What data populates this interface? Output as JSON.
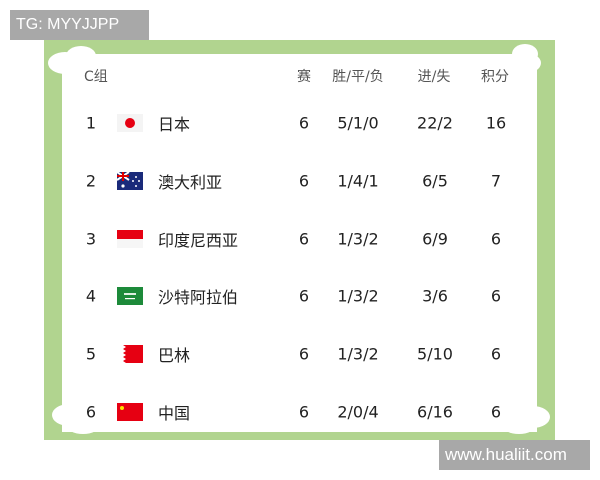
{
  "watermarks": {
    "top_left": "TG: MYYJJPP",
    "bottom_right": "www.hualiit.com"
  },
  "colors": {
    "frame": "#b1d48f",
    "flag_red": "#e60012"
  },
  "table": {
    "headers": {
      "group": "C组",
      "played": "赛",
      "wdl": "胜/平/负",
      "goals": "进/失",
      "points": "积分"
    },
    "rows": [
      {
        "rank": "1",
        "flag": "japan-flag",
        "team": "日本",
        "played": "6",
        "wdl": "5/1/0",
        "goals": "22/2",
        "points": "16"
      },
      {
        "rank": "2",
        "flag": "australia-flag",
        "team": "澳大利亚",
        "played": "6",
        "wdl": "1/4/1",
        "goals": "6/5",
        "points": "7"
      },
      {
        "rank": "3",
        "flag": "indonesia-flag",
        "team": "印度尼西亚",
        "played": "6",
        "wdl": "1/3/2",
        "goals": "6/9",
        "points": "6"
      },
      {
        "rank": "4",
        "flag": "saudi-arabia-flag",
        "team": "沙特阿拉伯",
        "played": "6",
        "wdl": "1/3/2",
        "goals": "3/6",
        "points": "6"
      },
      {
        "rank": "5",
        "flag": "bahrain-flag",
        "team": "巴林",
        "played": "6",
        "wdl": "1/3/2",
        "goals": "5/10",
        "points": "6"
      },
      {
        "rank": "6",
        "flag": "china-flag",
        "team": "中国",
        "played": "6",
        "wdl": "2/0/4",
        "goals": "6/16",
        "points": "6"
      }
    ]
  }
}
